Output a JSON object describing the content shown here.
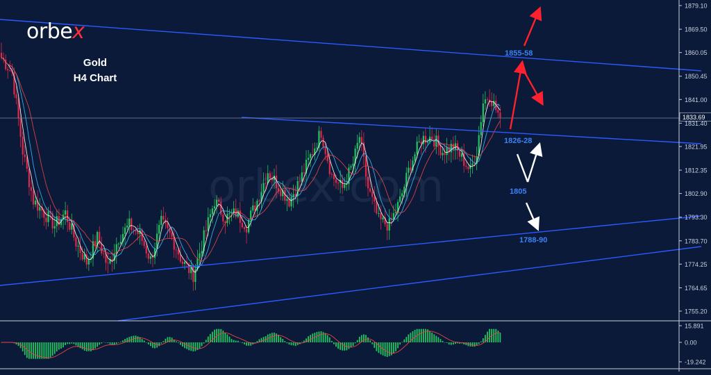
{
  "brand": {
    "name_main": "orbe",
    "name_accent": "x",
    "accent_color": "#ff2f3a"
  },
  "watermark": "orbex.com",
  "title": {
    "line1": "Gold",
    "line2": "H4 Chart"
  },
  "price_axis": {
    "ticks": [
      "1879.10",
      "1869.50",
      "1860.05",
      "1850.45",
      "1841.00",
      "1831.40",
      "1821.95",
      "1812.35",
      "1802.90",
      "1793.30",
      "1783.70",
      "1774.25",
      "1764.65",
      "1755.20"
    ],
    "current_price": "1833.69"
  },
  "osc_axis": {
    "ticks": [
      "15.891",
      "0.00",
      "-19.242"
    ]
  },
  "annotations": [
    {
      "id": "resistance",
      "text": "1855-58",
      "color": "#3b82f6"
    },
    {
      "id": "pivot",
      "text": "1826-28",
      "color": "#3b82f6"
    },
    {
      "id": "mid",
      "text": "1805",
      "color": "#3b82f6"
    },
    {
      "id": "support",
      "text": "1788-90",
      "color": "#3b82f6"
    }
  ],
  "colors": {
    "background": "#0b1a38",
    "bull_candle": "#22c55e",
    "bear_candle": "#e0294a",
    "trendline": "#2a5bff",
    "arrow_up": "#ff2030",
    "arrow_down": "#ffffff",
    "ma_fast": "#ffffff",
    "ma_mid": "#38bdf8",
    "ma_slow": "#ef4444"
  },
  "chart_data": {
    "type": "candlestick",
    "instrument": "Gold",
    "timeframe": "H4",
    "ylim": [
      1752,
      1882
    ],
    "anchors": [
      {
        "i": 0,
        "p": 1858
      },
      {
        "i": 5,
        "p": 1852
      },
      {
        "i": 10,
        "p": 1820
      },
      {
        "i": 15,
        "p": 1800
      },
      {
        "i": 20,
        "p": 1795
      },
      {
        "i": 25,
        "p": 1790
      },
      {
        "i": 30,
        "p": 1795
      },
      {
        "i": 35,
        "p": 1783
      },
      {
        "i": 40,
        "p": 1775
      },
      {
        "i": 45,
        "p": 1785
      },
      {
        "i": 50,
        "p": 1773
      },
      {
        "i": 55,
        "p": 1785
      },
      {
        "i": 60,
        "p": 1790
      },
      {
        "i": 65,
        "p": 1786
      },
      {
        "i": 70,
        "p": 1776
      },
      {
        "i": 75,
        "p": 1791
      },
      {
        "i": 80,
        "p": 1785
      },
      {
        "i": 85,
        "p": 1775
      },
      {
        "i": 90,
        "p": 1770
      },
      {
        "i": 95,
        "p": 1785
      },
      {
        "i": 100,
        "p": 1800
      },
      {
        "i": 105,
        "p": 1793
      },
      {
        "i": 110,
        "p": 1795
      },
      {
        "i": 115,
        "p": 1790
      },
      {
        "i": 120,
        "p": 1800
      },
      {
        "i": 125,
        "p": 1812
      },
      {
        "i": 130,
        "p": 1806
      },
      {
        "i": 135,
        "p": 1800
      },
      {
        "i": 140,
        "p": 1808
      },
      {
        "i": 145,
        "p": 1818
      },
      {
        "i": 150,
        "p": 1828
      },
      {
        "i": 155,
        "p": 1810
      },
      {
        "i": 160,
        "p": 1805
      },
      {
        "i": 165,
        "p": 1815
      },
      {
        "i": 168,
        "p": 1826
      },
      {
        "i": 172,
        "p": 1805
      },
      {
        "i": 177,
        "p": 1792
      },
      {
        "i": 182,
        "p": 1790
      },
      {
        "i": 187,
        "p": 1800
      },
      {
        "i": 192,
        "p": 1815
      },
      {
        "i": 197,
        "p": 1825
      },
      {
        "i": 202,
        "p": 1826
      },
      {
        "i": 207,
        "p": 1820
      },
      {
        "i": 212,
        "p": 1822
      },
      {
        "i": 217,
        "p": 1816
      },
      {
        "i": 220,
        "p": 1812
      },
      {
        "i": 223,
        "p": 1820
      },
      {
        "i": 226,
        "p": 1840
      },
      {
        "i": 229,
        "p": 1843
      },
      {
        "i": 232,
        "p": 1837
      },
      {
        "i": 234,
        "p": 1833.69
      }
    ],
    "oscillator_range": [
      -19.242,
      15.891
    ]
  }
}
